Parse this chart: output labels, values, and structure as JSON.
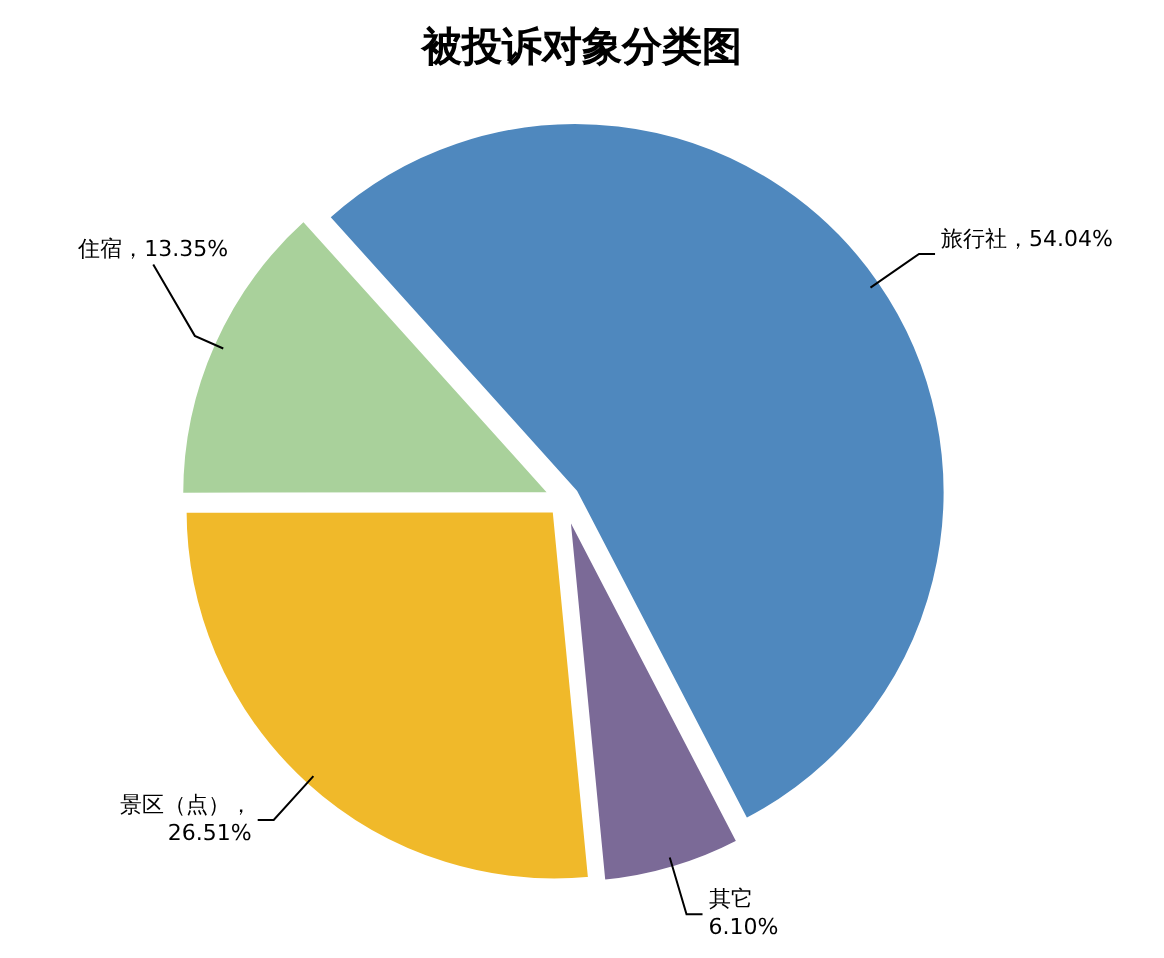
{
  "chart_data": {
    "type": "pie",
    "title": "被投诉对象分类图",
    "categories": [
      "旅行社",
      "其它",
      "景区（点）",
      "住宿"
    ],
    "values": [
      54.04,
      6.1,
      26.51,
      13.35
    ],
    "value_labels": [
      "，54.04%",
      "6.10%",
      "，26.51%",
      "，13.35%"
    ],
    "colors": [
      "#4f88be",
      "#7b6a97",
      "#f0b92a",
      "#a9d19b"
    ]
  }
}
